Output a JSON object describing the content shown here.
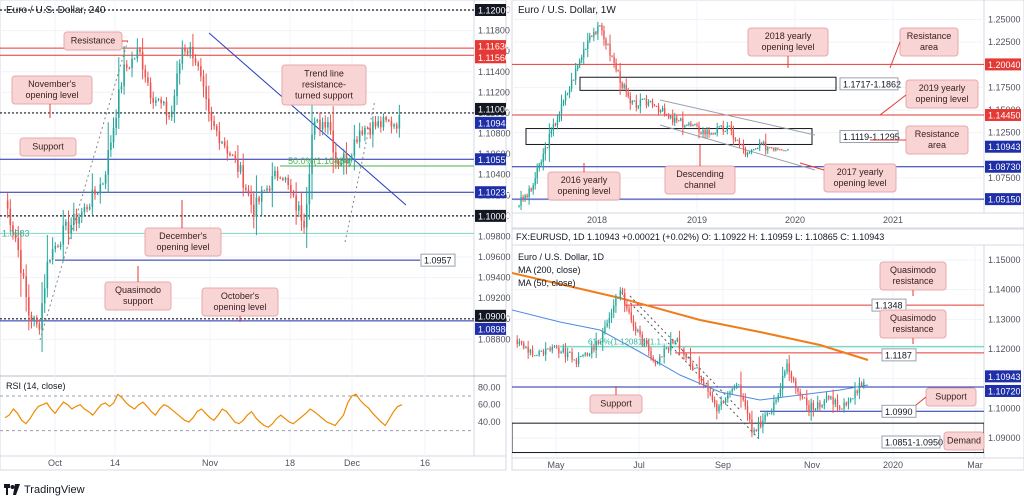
{
  "branding": {
    "name": "TradingView"
  },
  "colors": {
    "up": "#26a69a",
    "down": "#ef5350",
    "resistance": "#e53935",
    "support": "#1e2fa8",
    "callout_bg": "#f8d4d4",
    "callout_border": "#e8a9a9",
    "rsi_line": "#ef8a00",
    "ma200": "#ef7d1a",
    "ma50": "#4f8be0",
    "fib": "#4caf50"
  },
  "panels": {
    "h4": {
      "title": "Euro / U.S. Dollar, 240",
      "callouts": {
        "resistance": "Resistance",
        "november": "November's\nopening level",
        "trendline": "Trend line\nresistance-\nturned support",
        "support": "Support",
        "december": "December's\nopening level",
        "quasimodo": "Quasimodo\nsupport",
        "october": "October's\nopening level"
      },
      "fib_label": "50.0%(1.10484)",
      "fib_label_left": "1.0983",
      "level_tag": "1.0957",
      "rsi_label": "RSI (14, close)"
    },
    "weekly": {
      "title": "Euro / U.S. Dollar, 1W",
      "callouts": {
        "op2018": "2018 yearly\nopening level",
        "resist_area1": "Resistance\narea",
        "op2019": "2019 yearly\nopening level",
        "resist_area2": "Resistance\narea",
        "op2016": "2016 yearly\nopening level",
        "channel": "Descending\nchannel",
        "op2017": "2017 yearly\nopening level"
      },
      "zone1_label": "1.1717-1.1862",
      "zone2_label": "1.1119-1.1295"
    },
    "daily": {
      "header": "FX:EURUSD, 1D  1.10943  +0.00021 (+0.02%)  O: 1.10922  H: 1.10959  L: 1.10865  C: 1.10943",
      "title": "Euro / U.S. Dollar, 1D",
      "ma200_label": "MA (200, close)",
      "ma50_label": "MA (50, close)",
      "callouts": {
        "qm1": "Quasimodo\nresistance",
        "qm2": "Quasimodo\nresistance",
        "support_left": "Support",
        "support_right": "Support",
        "demand": "Demand"
      },
      "tag_1348": "1.1348",
      "tag_1187": "1.1187",
      "tag_0990": "1.0990",
      "zone_label": "1.0851-1.0950",
      "fib_text": "61.8%(1.12081)  (1.1..."
    }
  },
  "chart_data": [
    {
      "type": "candlestick",
      "title": "Euro / U.S. Dollar, 240",
      "x_ticks": [
        "Oct",
        "14",
        "Nov",
        "18",
        "Dec",
        "16"
      ],
      "y_ticks": [
        "1.12000",
        "1.11800",
        "1.11600",
        "1.11400",
        "1.11200",
        "1.11000",
        "1.10800",
        "1.10600",
        "1.10400",
        "1.10200",
        "1.10000",
        "1.09800",
        "1.09600",
        "1.09400",
        "1.09200",
        "1.09000",
        "1.08800"
      ],
      "ylim": [
        1.0872,
        1.1212
      ],
      "price_tags": [
        {
          "value": 1.12,
          "label": "1.12000",
          "color": "#131722"
        },
        {
          "value": 1.1163,
          "label": "1.11630",
          "color": "#e53935"
        },
        {
          "value": 1.1156,
          "label": "1.11560",
          "color": "#e53935"
        },
        {
          "value": 1.11,
          "label": "1.11000",
          "color": "#131722"
        },
        {
          "value": 1.10943,
          "label": "1.10943",
          "color": "#1e2fa8"
        },
        {
          "value": 1.1055,
          "label": "1.10550",
          "color": "#1e2fa8"
        },
        {
          "value": 1.1023,
          "label": "1.10230",
          "color": "#1e2fa8"
        },
        {
          "value": 1.1,
          "label": "1.10000",
          "color": "#131722"
        },
        {
          "value": 1.09,
          "label": "1.09000",
          "color": "#131722"
        },
        {
          "value": 1.0898,
          "label": "1.08980",
          "color": "#1e2fa8"
        }
      ],
      "rsi": {
        "label": "RSI (14, close)",
        "ticks": [
          "80.00",
          "60.00",
          "40.00"
        ],
        "bands": [
          70,
          30
        ],
        "path": [
          45,
          48,
          55,
          50,
          42,
          38,
          44,
          52,
          58,
          60,
          62,
          55,
          50,
          57,
          63,
          60,
          55,
          58,
          60,
          55,
          52,
          48,
          54,
          60,
          62,
          58,
          62,
          72,
          68,
          62,
          58,
          55,
          60,
          63,
          58,
          52,
          48,
          55,
          60,
          58,
          54,
          50,
          46,
          42,
          40,
          45,
          52,
          55,
          50,
          45,
          42,
          48,
          55,
          52,
          46,
          40,
          38,
          42,
          48,
          52,
          45,
          40,
          36,
          34,
          38,
          44,
          48,
          44,
          40,
          38,
          42,
          46,
          50,
          55,
          52,
          48,
          44,
          40,
          38,
          36,
          42,
          48,
          62,
          70,
          72,
          65,
          60,
          56,
          50,
          45,
          40,
          36,
          44,
          52,
          58,
          60
        ]
      }
    },
    {
      "type": "candlestick",
      "title": "Euro / U.S. Dollar, 1W",
      "x_ticks": [
        "2018",
        "2019",
        "2020",
        "2021"
      ],
      "y_ticks": [
        "1.25000",
        "1.22500",
        "1.17500",
        "1.15000",
        "1.12500",
        "1.07500",
        "1.05000"
      ],
      "ylim": [
        1.038,
        1.262
      ],
      "price_tags": [
        {
          "value": 1.2004,
          "label": "1.20040",
          "color": "#e53935"
        },
        {
          "value": 1.1445,
          "label": "1.14450",
          "color": "#e53935"
        },
        {
          "value": 1.10943,
          "label": "1.10943",
          "color": "#1e2fa8"
        },
        {
          "value": 1.0873,
          "label": "1.08730",
          "color": "#1e2fa8"
        },
        {
          "value": 1.0515,
          "label": "1.05150",
          "color": "#1e2fa8"
        }
      ]
    },
    {
      "type": "candlestick",
      "title": "Euro / U.S. Dollar, 1D",
      "x_ticks": [
        "May",
        "Jul",
        "Sep",
        "Nov",
        "2020",
        "Mar"
      ],
      "y_ticks": [
        "1.15000",
        "1.14000",
        "1.13000",
        "1.12000",
        "1.11000",
        "1.10000",
        "1.09000"
      ],
      "ylim": [
        1.0845,
        1.1525
      ],
      "price_tags": [
        {
          "value": 1.10943,
          "label": "1.10943",
          "color": "#1e2fa8"
        },
        {
          "value": 1.1072,
          "label": "1.10720",
          "color": "#1e2fa8"
        }
      ]
    }
  ]
}
